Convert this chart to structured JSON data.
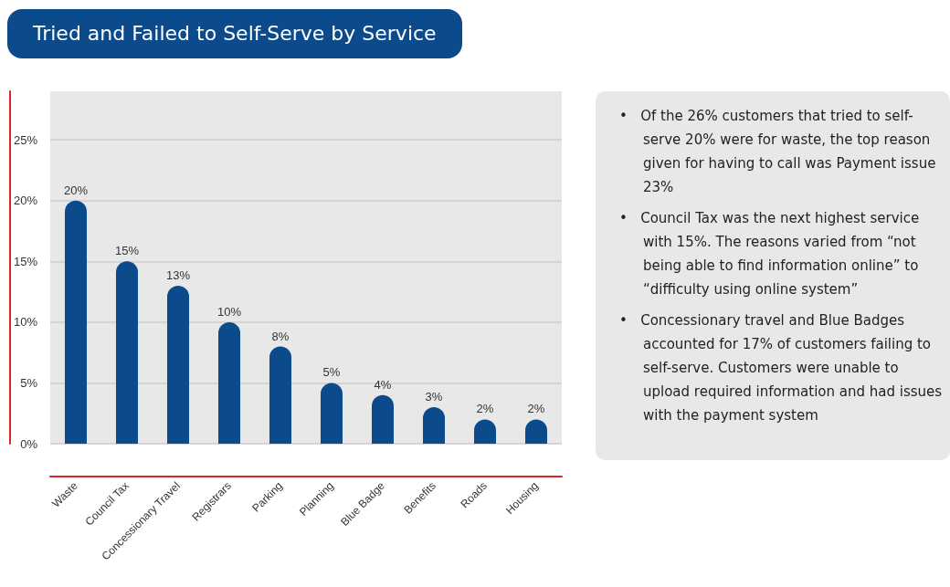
{
  "chart_data": {
    "type": "bar",
    "title": "Tried and Failed to Self-Serve by Service",
    "categories": [
      "Waste",
      "Council Tax",
      "Concessionary Travel",
      "Registrars",
      "Parking",
      "Planning",
      "Blue Badge",
      "Benefits",
      "Roads",
      "Housing"
    ],
    "values": [
      20,
      15,
      13,
      10,
      8,
      5,
      4,
      3,
      2,
      2
    ],
    "value_labels": [
      "20%",
      "15%",
      "13%",
      "10%",
      "8%",
      "5%",
      "4%",
      "3%",
      "2%",
      "2%"
    ],
    "color": "#0b4a8b",
    "ylim": [
      0,
      29
    ],
    "yticks": [
      {
        "value": 0,
        "label": "0%"
      },
      {
        "value": 5,
        "label": "5%"
      },
      {
        "value": 10,
        "label": "10%"
      },
      {
        "value": 15,
        "label": "15%"
      },
      {
        "value": 20,
        "label": "20%"
      },
      {
        "value": 25,
        "label": "25%"
      }
    ],
    "grid": "y",
    "annotations": [
      "•   Of the 26% customers that tried to self-serve 20% were for waste, the top reason given for having to call was Payment issue 23%",
      "•   Council Tax was the next highest service with 15%. The reasons varied from “not being able to find information online” to “difficulty using online system”",
      "•   Concessionary travel and Blue Badges accounted for 17% of customers failing to self-serve. Customers were unable to upload required information and had issues with the payment system"
    ]
  }
}
